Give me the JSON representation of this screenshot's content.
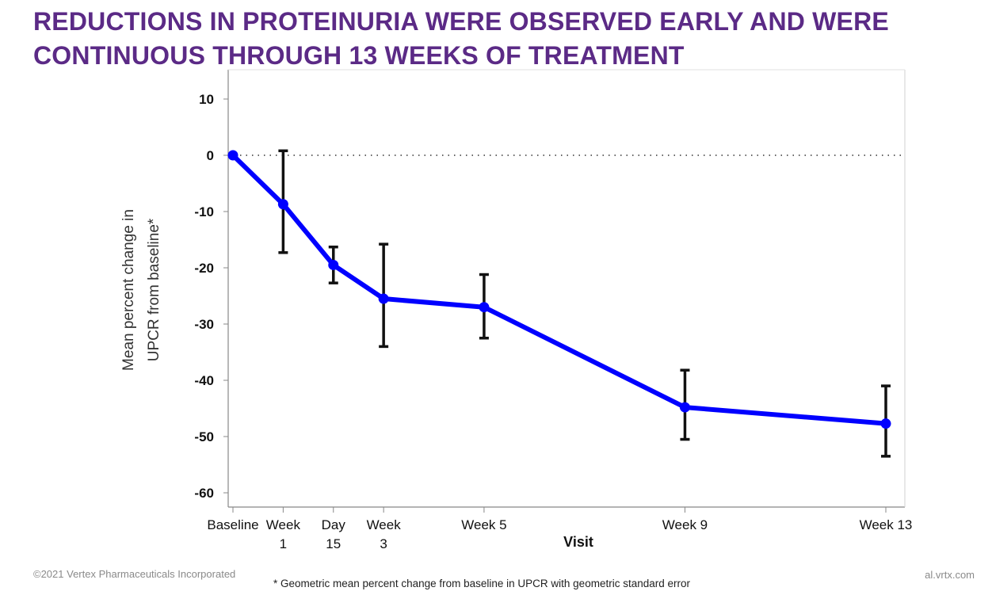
{
  "title": {
    "line1": "REDUCTIONS IN PROTEINURIA WERE OBSERVED EARLY AND WERE",
    "line2": "CONTINUOUS THROUGH 13 WEEKS OF TREATMENT"
  },
  "chart_data": {
    "type": "line",
    "xlabel": "Visit",
    "ylabel_lines": [
      "Mean percent change in",
      "UPCR from baseline*"
    ],
    "ylim": [
      -63,
      15
    ],
    "yticks": [
      10,
      0,
      -10,
      -20,
      -30,
      -40,
      -50,
      -60
    ],
    "reference_line": {
      "y": 0,
      "style": "dotted"
    },
    "grid": false,
    "x_days": [
      0,
      7,
      14,
      21,
      35,
      63,
      91
    ],
    "x_range_days": [
      0,
      91
    ],
    "categories": [
      [
        "Baseline"
      ],
      [
        "Week",
        "1"
      ],
      [
        "Day",
        "15"
      ],
      [
        "Week",
        "3"
      ],
      [
        "Week 5"
      ],
      [
        "Week 9"
      ],
      [
        "Week 13"
      ]
    ],
    "series": [
      {
        "color": "#0000ff",
        "values": [
          0,
          -8.7,
          -19.5,
          -25.5,
          -27.0,
          -44.8,
          -47.7
        ],
        "error_low": [
          0,
          -17.3,
          -22.7,
          -34.0,
          -32.5,
          -50.5,
          -53.5
        ],
        "error_high": [
          0,
          0.8,
          -16.3,
          -15.8,
          -21.2,
          -38.2,
          -41.0
        ]
      }
    ]
  },
  "footer": {
    "copyright": "©2021 Vertex Pharmaceuticals Incorporated",
    "note": "* Geometric mean percent change from baseline in UPCR with geometric standard error",
    "url": "al.vrtx.com"
  },
  "colors": {
    "title": "#5b2a86",
    "series": "#0000ff",
    "error_bars": "#111111",
    "axis": "#888888"
  }
}
